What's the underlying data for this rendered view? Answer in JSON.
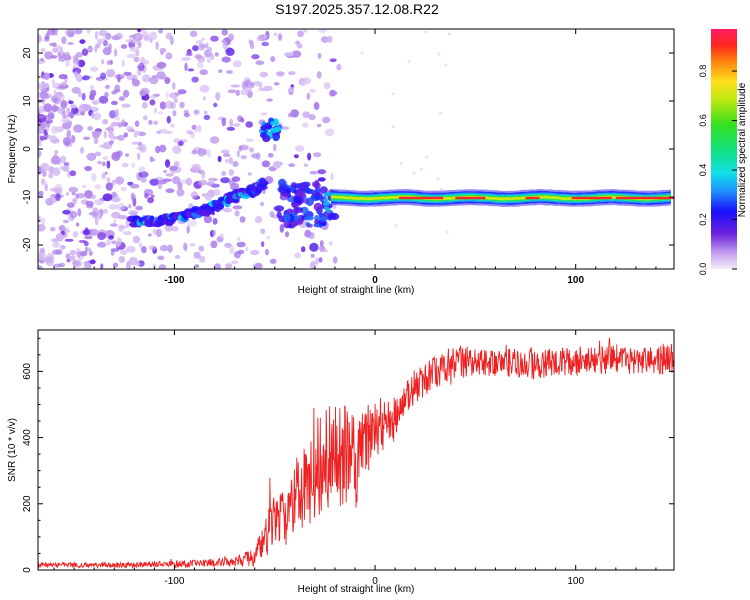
{
  "figure": {
    "title": "S197.2025.357.12.08.R22"
  },
  "chart_data": [
    {
      "type": "heatmap",
      "xlabel": "Height of straight line (km)",
      "ylabel": "Frequency (Hz)",
      "xlim": [
        -168,
        149
      ],
      "ylim": [
        -25,
        25
      ],
      "x_ticks": [
        -100,
        0,
        100
      ],
      "y_ticks": [
        -20,
        -10,
        0,
        10,
        20
      ],
      "colorbar": {
        "label": "Normalized spectral amplitude",
        "range": [
          0,
          0.97
        ],
        "ticks": [
          "0.0",
          "0.2",
          "0.4",
          "0.6",
          "0.8"
        ],
        "tick_values": [
          0.0,
          0.2,
          0.4,
          0.6,
          0.8
        ]
      },
      "features": [
        {
          "name": "scattered background noise",
          "x_range": [
            -168,
            -20
          ],
          "freq_range": [
            -25,
            25
          ],
          "amplitude": 0.05
        },
        {
          "name": "rising arc",
          "points": [
            [
              -122,
              -15
            ],
            [
              -110,
              -15
            ],
            [
              -100,
              -14.5
            ],
            [
              -90,
              -13.5
            ],
            [
              -80,
              -12
            ],
            [
              -70,
              -10
            ],
            [
              -60,
              -8.5
            ],
            [
              -55,
              -7
            ]
          ],
          "amplitude": 0.3
        },
        {
          "name": "high-frequency blob",
          "center": [
            -52,
            4
          ],
          "amplitude": 0.35
        },
        {
          "name": "middle cluster",
          "x_range": [
            -48,
            -20
          ],
          "freq_range": [
            -16,
            -7
          ],
          "amplitude": 0.25
        },
        {
          "name": "steady tone",
          "x_range": [
            -22,
            149
          ],
          "frequency": -10.2,
          "amplitude": 0.95
        }
      ]
    },
    {
      "type": "line",
      "xlabel": "Height of straight line (km)",
      "ylabel": "SNR (10 * v/v)",
      "xlim": [
        -168,
        149
      ],
      "ylim": [
        0,
        725
      ],
      "x_ticks": [
        -100,
        0,
        100
      ],
      "y_ticks": [
        0,
        200,
        400,
        600
      ],
      "color": "#ee2222",
      "series": [
        {
          "name": "SNR",
          "x": [
            -168,
            -140,
            -120,
            -100,
            -80,
            -70,
            -60,
            -55,
            -50,
            -45,
            -40,
            -35,
            -30,
            -25,
            -20,
            -15,
            -12,
            -10,
            -5,
            0,
            5,
            10,
            15,
            20,
            30,
            40,
            60,
            80,
            100,
            120,
            140,
            149
          ],
          "y": [
            15,
            15,
            15,
            18,
            22,
            25,
            40,
            90,
            180,
            150,
            220,
            250,
            300,
            330,
            350,
            360,
            380,
            300,
            380,
            420,
            440,
            460,
            520,
            560,
            600,
            630,
            630,
            620,
            630,
            640,
            630,
            640
          ],
          "noise_amplitude": [
            8,
            8,
            8,
            10,
            12,
            15,
            30,
            70,
            90,
            90,
            110,
            130,
            150,
            160,
            170,
            180,
            200,
            120,
            120,
            100,
            80,
            70,
            60,
            60,
            50,
            50,
            45,
            45,
            45,
            45,
            45,
            45
          ]
        }
      ]
    }
  ]
}
